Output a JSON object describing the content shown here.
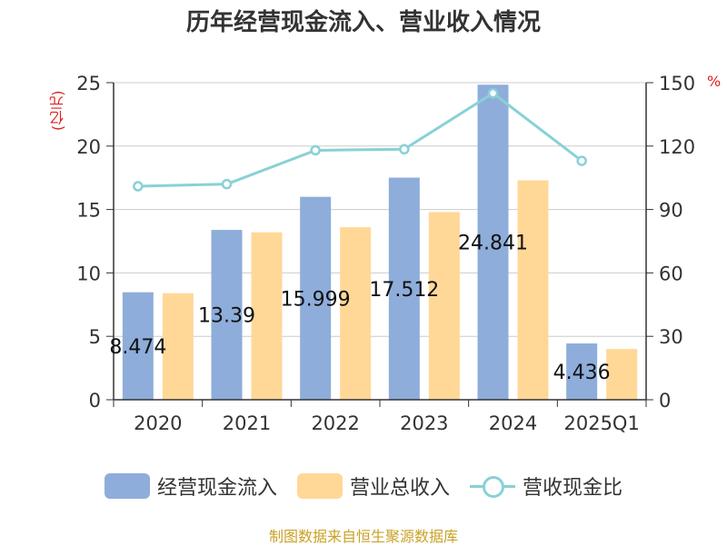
{
  "title": "历年经营现金流入、营业收入情况",
  "left_unit": "(亿元)",
  "right_unit": "%",
  "source": "制图数据来自恒生聚源数据库",
  "legend": {
    "cash_inflow": "经营现金流入",
    "revenue": "营业总收入",
    "ratio": "营收现金比"
  },
  "colors": {
    "cash_inflow": "#8eadda",
    "revenue": "#ffd897",
    "ratio": "#88d1d6",
    "unit": "#e02020",
    "source": "#c9a227"
  },
  "chart_data": {
    "type": "bar",
    "categories": [
      "2020",
      "2021",
      "2022",
      "2023",
      "2024",
      "2025Q1"
    ],
    "series": [
      {
        "name": "经营现金流入",
        "axis": "left",
        "values": [
          8.474,
          13.39,
          15.999,
          17.512,
          24.841,
          4.436
        ],
        "labels": [
          "8.474",
          "13.39",
          "15.999",
          "17.512",
          "24.841",
          "4.436"
        ]
      },
      {
        "name": "营业总收入",
        "axis": "left",
        "values": [
          8.4,
          13.2,
          13.6,
          14.8,
          17.3,
          4.0
        ]
      },
      {
        "name": "营收现金比",
        "axis": "right",
        "type": "line",
        "values": [
          101,
          102,
          118,
          118.5,
          145,
          113
        ]
      }
    ],
    "left_axis": {
      "ylim": [
        0,
        25
      ],
      "ticks": [
        0,
        5,
        10,
        15,
        20,
        25
      ]
    },
    "right_axis": {
      "ylim": [
        0,
        150
      ],
      "ticks": [
        0,
        30,
        60,
        90,
        120,
        150
      ]
    },
    "grid": true,
    "legend_position": "bottom"
  }
}
